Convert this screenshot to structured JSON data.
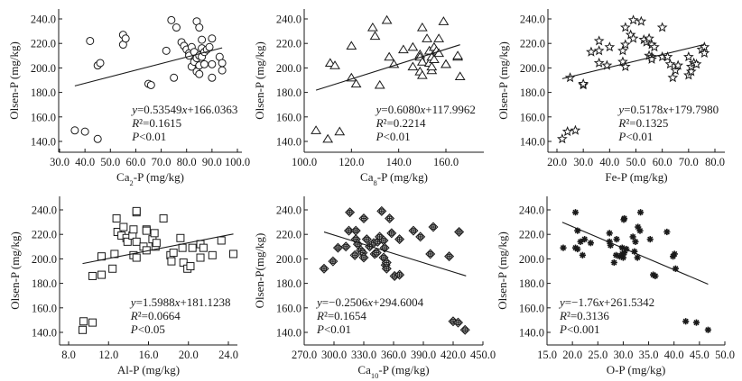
{
  "chart_data": [
    {
      "type": "scatter",
      "panel": "top-left",
      "marker": "circle",
      "xlabel": "Ca2-P (mg/kg)",
      "xlabel_main": "Ca",
      "xlabel_sub": "2",
      "xlabel_rest": "-P (mg/kg)",
      "ylabel": "Olsen-P (mg/kg)",
      "xlim": [
        30,
        100
      ],
      "ylim": [
        130,
        245
      ],
      "xticks": [
        30,
        40,
        50,
        60,
        70,
        80,
        90,
        100
      ],
      "xtick_labels": [
        "30.0",
        "40.0",
        "50.0",
        "60.0",
        "70.0",
        "80.0",
        "90.0",
        "100.0"
      ],
      "yticks": [
        140,
        160,
        180,
        200,
        220,
        240
      ],
      "ytick_labels": [
        "140.0",
        "160.0",
        "180.0",
        "200.0",
        "220.0",
        "240.0"
      ],
      "fit": {
        "slope": 0.53549,
        "intercept": 166.0363,
        "x_range": [
          36,
          94
        ]
      },
      "annotations": {
        "equation": "y=0.53549x+166.0363",
        "r2": "R²=0.1615",
        "p": "P<0.01",
        "placement": "bottom-right"
      },
      "points": [
        [
          36,
          149
        ],
        [
          40,
          148
        ],
        [
          45,
          142
        ],
        [
          42,
          222
        ],
        [
          45,
          202
        ],
        [
          46,
          204
        ],
        [
          55,
          219
        ],
        [
          55,
          227
        ],
        [
          56,
          224
        ],
        [
          65,
          187
        ],
        [
          66,
          186
        ],
        [
          72,
          214
        ],
        [
          74,
          239
        ],
        [
          76,
          233
        ],
        [
          75,
          192
        ],
        [
          78,
          221
        ],
        [
          79,
          218
        ],
        [
          80,
          215
        ],
        [
          81,
          212
        ],
        [
          81,
          210
        ],
        [
          82,
          217
        ],
        [
          82,
          201
        ],
        [
          83,
          213
        ],
        [
          83,
          205
        ],
        [
          84,
          208
        ],
        [
          84,
          197
        ],
        [
          84,
          238
        ],
        [
          85,
          233
        ],
        [
          85,
          210
        ],
        [
          85,
          202
        ],
        [
          85,
          195
        ],
        [
          86,
          223
        ],
        [
          86,
          216
        ],
        [
          86,
          209
        ],
        [
          87,
          213
        ],
        [
          87,
          203
        ],
        [
          88,
          215
        ],
        [
          89,
          217
        ],
        [
          90,
          224
        ],
        [
          90,
          203
        ],
        [
          90,
          192
        ],
        [
          93,
          209
        ],
        [
          94,
          204
        ],
        [
          94,
          198
        ]
      ]
    },
    {
      "type": "scatter",
      "panel": "top-middle",
      "marker": "triangle",
      "xlabel": "Ca8-P (mg/kg)",
      "xlabel_main": "Ca",
      "xlabel_sub": "8",
      "xlabel_rest": "-P (mg/kg)",
      "ylabel": "Olsen-P (mg/kg)",
      "xlim": [
        100,
        172
      ],
      "ylim": [
        130,
        245
      ],
      "xticks": [
        100,
        120,
        140,
        160
      ],
      "xtick_labels": [
        "100.0",
        "120.0",
        "140.0",
        "160.0"
      ],
      "yticks": [
        140,
        160,
        180,
        200,
        220,
        240
      ],
      "ytick_labels": [
        "140.0",
        "160.0",
        "180.0",
        "200.0",
        "220.0",
        "240.0"
      ],
      "fit": {
        "slope": 0.608,
        "intercept": 117.9962,
        "x_range": [
          105,
          166
        ]
      },
      "annotations": {
        "equation": "y=0.6080x+117.9962",
        "r2": "R²=0.2214",
        "p": "P<0.01",
        "placement": "bottom-right"
      },
      "points": [
        [
          105,
          149
        ],
        [
          110,
          142
        ],
        [
          115,
          148
        ],
        [
          111,
          204
        ],
        [
          113,
          202
        ],
        [
          120,
          218
        ],
        [
          120,
          192
        ],
        [
          122,
          187
        ],
        [
          129,
          233
        ],
        [
          130,
          226
        ],
        [
          132,
          186
        ],
        [
          135,
          239
        ],
        [
          136,
          209
        ],
        [
          138,
          203
        ],
        [
          142,
          215
        ],
        [
          146,
          217
        ],
        [
          146,
          201
        ],
        [
          149,
          211
        ],
        [
          149,
          209
        ],
        [
          149,
          197
        ],
        [
          150,
          205
        ],
        [
          150,
          194
        ],
        [
          150,
          233
        ],
        [
          152,
          224
        ],
        [
          153,
          214
        ],
        [
          153,
          204
        ],
        [
          154,
          209
        ],
        [
          154,
          198
        ],
        [
          154,
          201
        ],
        [
          155,
          217
        ],
        [
          155,
          207
        ],
        [
          156,
          214
        ],
        [
          157,
          224
        ],
        [
          157,
          212
        ],
        [
          159,
          238
        ],
        [
          160,
          203
        ],
        [
          160,
          203
        ],
        [
          165,
          209
        ],
        [
          165,
          210
        ],
        [
          166,
          193
        ]
      ]
    },
    {
      "type": "scatter",
      "panel": "top-right",
      "marker": "star",
      "xlabel": "Fe-P (mg/kg)",
      "xlabel_main": "Fe-P (mg/kg)",
      "xlabel_sub": "",
      "xlabel_rest": "",
      "ylabel": "Olsen-P (mg/kg)",
      "xlim": [
        15,
        85
      ],
      "ylim": [
        130,
        245
      ],
      "xticks": [
        20,
        30,
        40,
        50,
        60,
        70,
        80
      ],
      "xtick_labels": [
        "20.0",
        "30.0",
        "40.0",
        "50.0",
        "60.0",
        "70.0",
        "80.0"
      ],
      "yticks": [
        140,
        160,
        180,
        200,
        220,
        240
      ],
      "ytick_labels": [
        "140.0",
        "160.0",
        "180.0",
        "200.0",
        "220.0",
        "240.0"
      ],
      "fit": {
        "slope": 0.5178,
        "intercept": 179.798,
        "x_range": [
          22,
          76
        ]
      },
      "annotations": {
        "equation": "y=0.5178x+179.7980",
        "r2": "R²=0.1325",
        "p": "P<0.01",
        "placement": "bottom-right"
      },
      "points": [
        [
          22,
          142
        ],
        [
          24,
          148
        ],
        [
          27,
          149
        ],
        [
          25,
          192
        ],
        [
          30,
          186
        ],
        [
          30,
          187
        ],
        [
          33,
          213
        ],
        [
          36,
          214
        ],
        [
          36,
          222
        ],
        [
          36,
          204
        ],
        [
          39,
          202
        ],
        [
          40,
          217
        ],
        [
          45,
          214
        ],
        [
          45,
          205
        ],
        [
          46,
          201
        ],
        [
          46,
          219
        ],
        [
          46,
          233
        ],
        [
          48,
          227
        ],
        [
          49,
          224
        ],
        [
          49,
          239
        ],
        [
          52,
          238
        ],
        [
          53,
          223
        ],
        [
          54,
          221
        ],
        [
          55,
          224
        ],
        [
          55,
          210
        ],
        [
          56,
          209
        ],
        [
          56,
          207
        ],
        [
          56,
          219
        ],
        [
          57,
          217
        ],
        [
          60,
          233
        ],
        [
          60,
          209
        ],
        [
          62,
          209
        ],
        [
          63,
          203
        ],
        [
          64,
          192
        ],
        [
          65,
          198
        ],
        [
          66,
          202
        ],
        [
          70,
          194
        ],
        [
          70,
          209
        ],
        [
          71,
          197
        ],
        [
          71,
          201
        ],
        [
          72,
          204
        ],
        [
          73,
          203
        ],
        [
          75,
          215
        ],
        [
          76,
          217
        ],
        [
          76,
          212
        ]
      ]
    },
    {
      "type": "scatter",
      "panel": "bottom-left",
      "marker": "square",
      "xlabel": "Al-P (mg/kg)",
      "xlabel_main": "Al-P (mg/kg)",
      "xlabel_sub": "",
      "xlabel_rest": "",
      "ylabel": "Olsen-P (mg/kg)",
      "xlim": [
        7,
        25
      ],
      "ylim": [
        130,
        245
      ],
      "xticks": [
        8,
        12,
        16,
        20,
        24
      ],
      "xtick_labels": [
        "8.0",
        "12.0",
        "16.0",
        "20.0",
        "24.0"
      ],
      "yticks": [
        140,
        160,
        180,
        200,
        220,
        240
      ],
      "ytick_labels": [
        "140.0",
        "160.0",
        "180.0",
        "200.0",
        "220.0",
        "240.0"
      ],
      "fit": {
        "slope": 1.5988,
        "intercept": 181.1238,
        "x_range": [
          9.4,
          24.5
        ]
      },
      "annotations": {
        "equation": "y=1.5988x+181.1238",
        "r2": "R²=0.0664",
        "p": "P<0.05",
        "placement": "bottom-right"
      },
      "points": [
        [
          9.4,
          142
        ],
        [
          9.5,
          149
        ],
        [
          10.4,
          148
        ],
        [
          10.4,
          186
        ],
        [
          11.3,
          187
        ],
        [
          11.3,
          202
        ],
        [
          12.4,
          192
        ],
        [
          12.6,
          204
        ],
        [
          12.8,
          233
        ],
        [
          12.9,
          222
        ],
        [
          13.3,
          219
        ],
        [
          13.5,
          226
        ],
        [
          13.8,
          217
        ],
        [
          13.9,
          214
        ],
        [
          14.4,
          219
        ],
        [
          14.5,
          224
        ],
        [
          14.5,
          203
        ],
        [
          14.8,
          214
        ],
        [
          14.8,
          201
        ],
        [
          14.8,
          238
        ],
        [
          14.8,
          239
        ],
        [
          15.5,
          210
        ],
        [
          15.8,
          224
        ],
        [
          15.8,
          223
        ],
        [
          15.8,
          207
        ],
        [
          16.4,
          216
        ],
        [
          16.6,
          221
        ],
        [
          16.7,
          210
        ],
        [
          16.8,
          213
        ],
        [
          17.5,
          233
        ],
        [
          18.2,
          203
        ],
        [
          18.3,
          198
        ],
        [
          18.5,
          205
        ],
        [
          19.2,
          217
        ],
        [
          19.4,
          209
        ],
        [
          19.5,
          197
        ],
        [
          19.9,
          192
        ],
        [
          20.2,
          194
        ],
        [
          20.4,
          209
        ],
        [
          21.2,
          212
        ],
        [
          21.2,
          201
        ],
        [
          21.5,
          209
        ],
        [
          22.4,
          203
        ],
        [
          23.3,
          215
        ],
        [
          24.5,
          204
        ]
      ]
    },
    {
      "type": "scatter",
      "panel": "bottom-middle",
      "marker": "diamond-cross",
      "xlabel": "Ca10-P (mg/kg)",
      "xlabel_main": "Ca",
      "xlabel_sub": "10",
      "xlabel_rest": "-P (mg/kg)",
      "ylabel": "Olsen-P(mg/kg)",
      "xlim": [
        270,
        450
      ],
      "ylim": [
        130,
        245
      ],
      "xticks": [
        270,
        300,
        330,
        360,
        390,
        420,
        450
      ],
      "xtick_labels": [
        "270.0",
        "300.0",
        "330.0",
        "360.0",
        "390.0",
        "420.0",
        "450.0"
      ],
      "yticks": [
        140,
        160,
        180,
        200,
        220,
        240
      ],
      "ytick_labels": [
        "140.0",
        "160.0",
        "180.0",
        "200.0",
        "220.0",
        "240.0"
      ],
      "fit": {
        "slope": -0.2506,
        "intercept": 294.6004,
        "x_range": [
          290,
          433
        ]
      },
      "annotations": {
        "equation": "y=−0.2506x+294.6004",
        "r2": "R²=0.1654",
        "p": "P<0.01",
        "placement": "bottom-left"
      },
      "points": [
        [
          290,
          192
        ],
        [
          299,
          198
        ],
        [
          304,
          209
        ],
        [
          312,
          210
        ],
        [
          315,
          223
        ],
        [
          316,
          238
        ],
        [
          321,
          203
        ],
        [
          322,
          223
        ],
        [
          322,
          216
        ],
        [
          324,
          212
        ],
        [
          327,
          207
        ],
        [
          329,
          205
        ],
        [
          330,
          201
        ],
        [
          330,
          233
        ],
        [
          333,
          216
        ],
        [
          336,
          210
        ],
        [
          340,
          213
        ],
        [
          341,
          204
        ],
        [
          343,
          205
        ],
        [
          344,
          214
        ],
        [
          346,
          218
        ],
        [
          348,
          239
        ],
        [
          350,
          215
        ],
        [
          350,
          201
        ],
        [
          351,
          209
        ],
        [
          352,
          195
        ],
        [
          353,
          192
        ],
        [
          353,
          197
        ],
        [
          356,
          233
        ],
        [
          358,
          221
        ],
        [
          361,
          186
        ],
        [
          366,
          187
        ],
        [
          366,
          216
        ],
        [
          380,
          223
        ],
        [
          387,
          218
        ],
        [
          397,
          204
        ],
        [
          400,
          226
        ],
        [
          416,
          202
        ],
        [
          420,
          149
        ],
        [
          425,
          148
        ],
        [
          426,
          222
        ],
        [
          432,
          142
        ]
      ]
    },
    {
      "type": "scatter",
      "panel": "bottom-right",
      "marker": "asterisk",
      "xlabel": "O-P (mg/kg)",
      "xlabel_main": "O-P (mg/kg)",
      "xlabel_sub": "",
      "xlabel_rest": "",
      "ylabel": "Olsen-P (mg/kg)",
      "xlim": [
        15,
        50
      ],
      "ylim": [
        130,
        245
      ],
      "xticks": [
        15,
        20,
        25,
        30,
        35,
        40,
        45,
        50
      ],
      "xtick_labels": [
        "15.0",
        "20.0",
        "25.0",
        "30.0",
        "35.0",
        "40.0",
        "45.0",
        "50.0"
      ],
      "yticks": [
        140,
        160,
        180,
        200,
        220,
        240
      ],
      "ytick_labels": [
        "140.0",
        "160.0",
        "180.0",
        "200.0",
        "220.0",
        "240.0"
      ],
      "fit": {
        "slope": -1.76,
        "intercept": 261.5342,
        "x_range": [
          18,
          46.7
        ]
      },
      "annotations": {
        "equation": "y=−1.76x+261.5342",
        "r2": "R²=0.3136",
        "p": "P<0.001",
        "placement": "bottom-left"
      },
      "points": [
        [
          18.2,
          209
        ],
        [
          20.6,
          238
        ],
        [
          20.6,
          209
        ],
        [
          21.0,
          223
        ],
        [
          21.0,
          208
        ],
        [
          21.6,
          214
        ],
        [
          22.0,
          203
        ],
        [
          22.4,
          216
        ],
        [
          23.6,
          213
        ],
        [
          27.3,
          221
        ],
        [
          27.3,
          214
        ],
        [
          27.5,
          211
        ],
        [
          28.2,
          197
        ],
        [
          28.6,
          203
        ],
        [
          28.7,
          216
        ],
        [
          29.3,
          202
        ],
        [
          29.8,
          209
        ],
        [
          29.8,
          204
        ],
        [
          30.0,
          201
        ],
        [
          30.1,
          232
        ],
        [
          30.2,
          233
        ],
        [
          30.2,
          205
        ],
        [
          30.6,
          208
        ],
        [
          31.9,
          218
        ],
        [
          32.2,
          206
        ],
        [
          32.4,
          214
        ],
        [
          32.8,
          201
        ],
        [
          32.9,
          226
        ],
        [
          33.3,
          223
        ],
        [
          33.4,
          238
        ],
        [
          35.3,
          216
        ],
        [
          35.9,
          187
        ],
        [
          36.3,
          186
        ],
        [
          38.6,
          222
        ],
        [
          39.8,
          202
        ],
        [
          40.1,
          204
        ],
        [
          40.3,
          192
        ],
        [
          42.3,
          149
        ],
        [
          44.4,
          148
        ],
        [
          46.7,
          142
        ]
      ]
    }
  ]
}
